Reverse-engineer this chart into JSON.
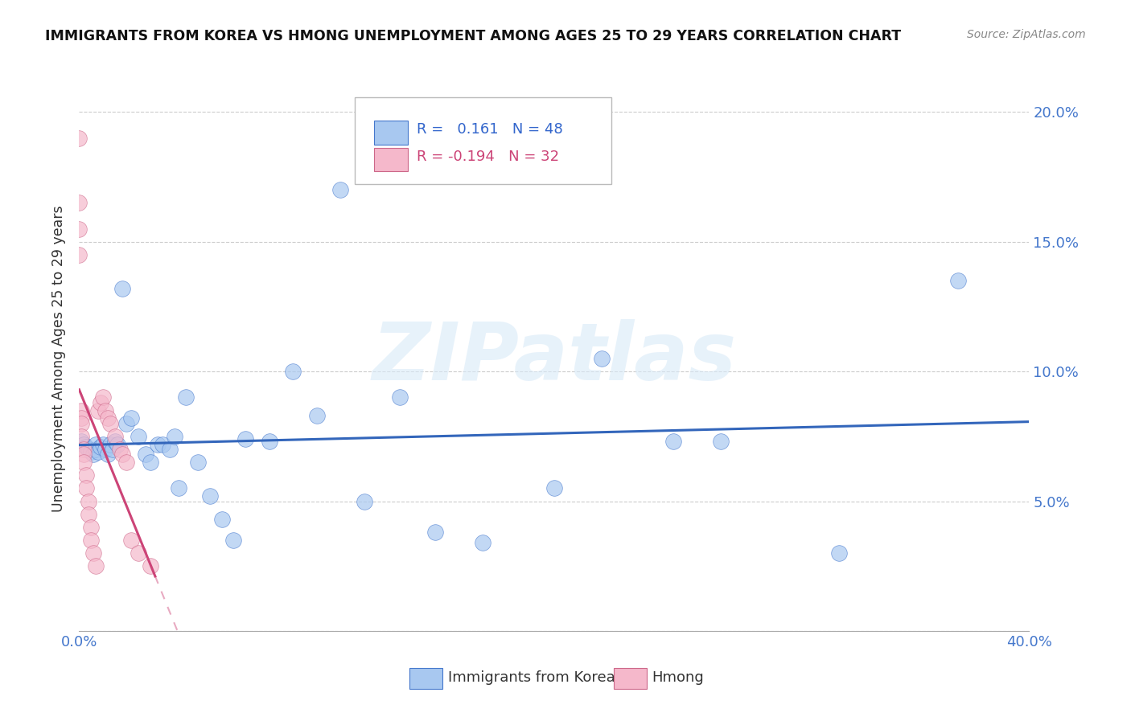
{
  "title": "IMMIGRANTS FROM KOREA VS HMONG UNEMPLOYMENT AMONG AGES 25 TO 29 YEARS CORRELATION CHART",
  "source": "Source: ZipAtlas.com",
  "ylabel": "Unemployment Among Ages 25 to 29 years",
  "xlim": [
    0.0,
    0.4
  ],
  "ylim": [
    0.0,
    0.21
  ],
  "legend_korea_r": "0.161",
  "legend_korea_n": "48",
  "legend_hmong_r": "-0.194",
  "legend_hmong_n": "32",
  "korea_color": "#a8c8f0",
  "korea_edge_color": "#4477cc",
  "korea_line_color": "#3366bb",
  "hmong_color": "#f5b8cb",
  "hmong_edge_color": "#cc6688",
  "hmong_line_color": "#cc4477",
  "watermark": "ZIPatlas",
  "korea_x": [
    0.001,
    0.002,
    0.003,
    0.004,
    0.005,
    0.006,
    0.007,
    0.007,
    0.008,
    0.009,
    0.01,
    0.011,
    0.012,
    0.013,
    0.014,
    0.015,
    0.016,
    0.018,
    0.02,
    0.022,
    0.025,
    0.028,
    0.03,
    0.033,
    0.035,
    0.038,
    0.04,
    0.042,
    0.045,
    0.05,
    0.055,
    0.06,
    0.065,
    0.07,
    0.08,
    0.09,
    0.1,
    0.11,
    0.12,
    0.135,
    0.15,
    0.17,
    0.2,
    0.22,
    0.25,
    0.27,
    0.32,
    0.37
  ],
  "korea_y": [
    0.073,
    0.072,
    0.071,
    0.07,
    0.069,
    0.068,
    0.07,
    0.072,
    0.069,
    0.071,
    0.072,
    0.07,
    0.068,
    0.072,
    0.07,
    0.073,
    0.072,
    0.132,
    0.08,
    0.082,
    0.075,
    0.068,
    0.065,
    0.072,
    0.072,
    0.07,
    0.075,
    0.055,
    0.09,
    0.065,
    0.052,
    0.043,
    0.035,
    0.074,
    0.073,
    0.1,
    0.083,
    0.17,
    0.05,
    0.09,
    0.038,
    0.034,
    0.055,
    0.105,
    0.073,
    0.073,
    0.03,
    0.135
  ],
  "hmong_x": [
    0.0,
    0.0,
    0.0,
    0.0,
    0.001,
    0.001,
    0.001,
    0.001,
    0.002,
    0.002,
    0.002,
    0.003,
    0.003,
    0.004,
    0.004,
    0.005,
    0.005,
    0.006,
    0.007,
    0.008,
    0.009,
    0.01,
    0.011,
    0.012,
    0.013,
    0.015,
    0.017,
    0.018,
    0.02,
    0.022,
    0.025,
    0.03
  ],
  "hmong_y": [
    0.19,
    0.165,
    0.155,
    0.145,
    0.085,
    0.082,
    0.08,
    0.075,
    0.07,
    0.068,
    0.065,
    0.06,
    0.055,
    0.05,
    0.045,
    0.04,
    0.035,
    0.03,
    0.025,
    0.085,
    0.088,
    0.09,
    0.085,
    0.082,
    0.08,
    0.075,
    0.07,
    0.068,
    0.065,
    0.035,
    0.03,
    0.025
  ]
}
